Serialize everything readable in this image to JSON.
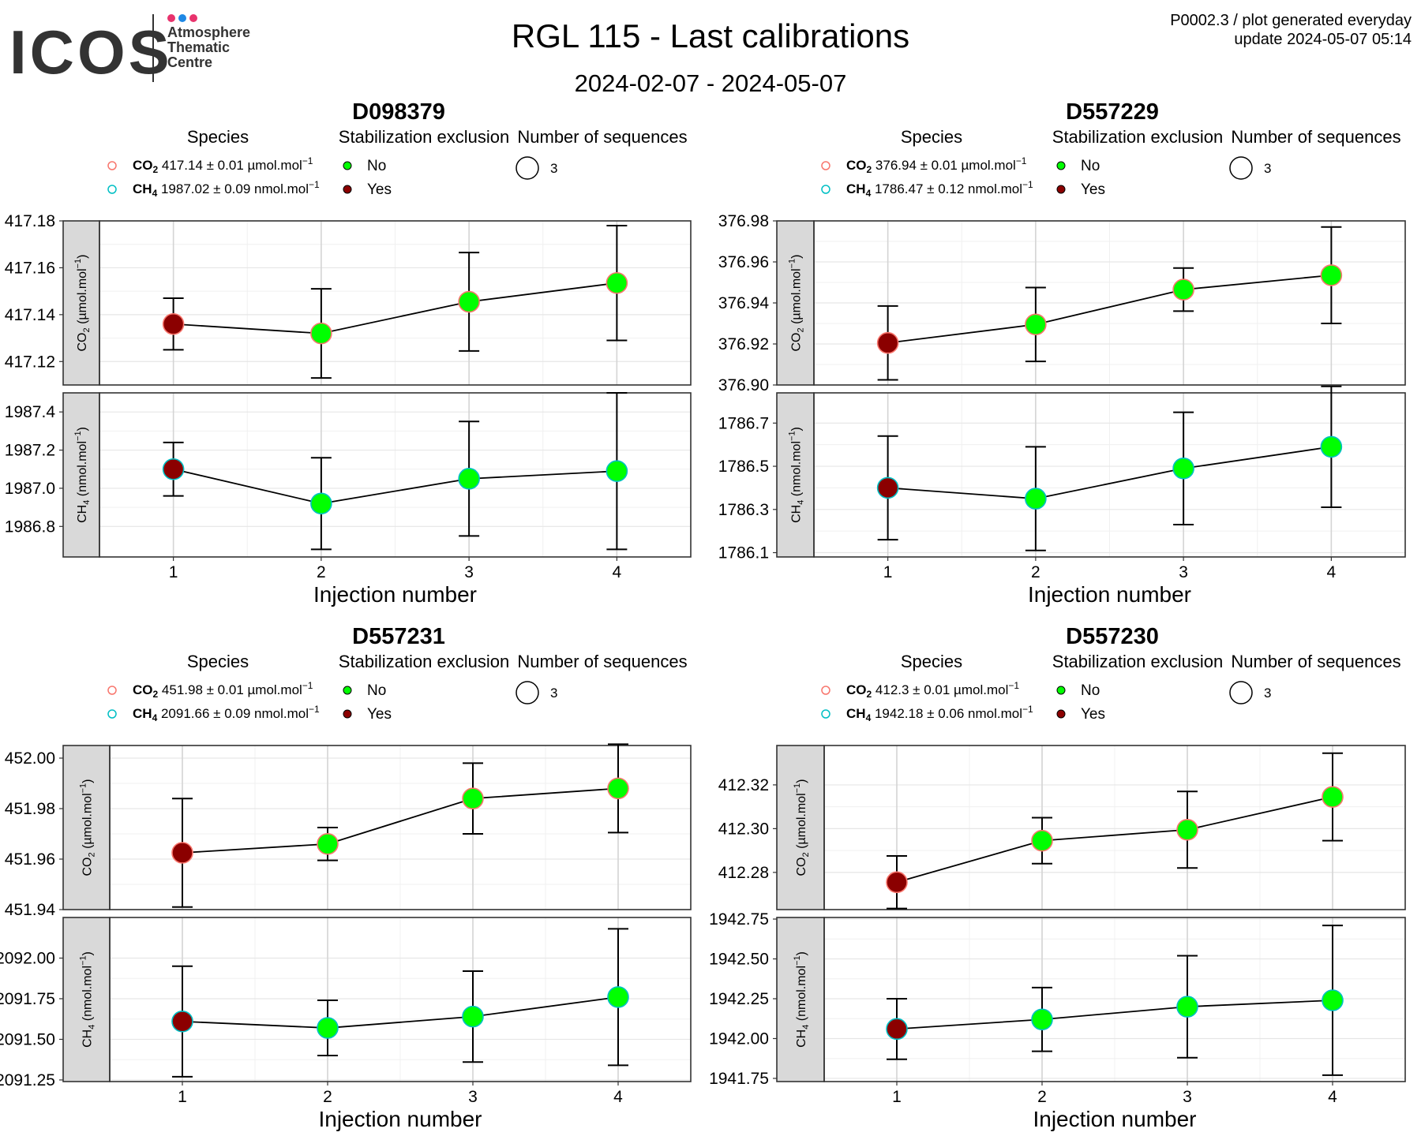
{
  "header": {
    "logo_word": "ICOS",
    "logo_lines": [
      "Atmosphere",
      "Thematic",
      "Centre"
    ],
    "title": "RGL 115 - Last calibrations",
    "date_range": "2024-02-07 - 2024-05-07",
    "info_line1": "P0002.3 / plot generated everyday",
    "info_line2": "update  2024-05-07 05:14"
  },
  "colors": {
    "logo_dots": [
      "#e8336d",
      "#1e88e5",
      "#e8336d"
    ],
    "no": "#00ff00",
    "yes": "#8b0000",
    "co2_outline": "#f8766d",
    "ch4_outline": "#00bfc4",
    "strip_fill": "#d9d9d9"
  },
  "legend_titles": {
    "species": "Species",
    "stabilization": "Stabilization exclusion",
    "sequences": "Number of sequences",
    "no": "No",
    "yes": "Yes",
    "sequences_value": "3"
  },
  "chart_data": [
    {
      "type": "line",
      "title": "D098379",
      "xlabel": "Injection number",
      "x": [
        1,
        2,
        3,
        4
      ],
      "xlim": [
        0.5,
        4.5
      ],
      "legend": {
        "co2": {
          "species": "CO",
          "sub": "2",
          "text": " 417.14 ± 0.01 µmol.mol",
          "sup": "−1"
        },
        "ch4": {
          "species": "CH",
          "sub": "4",
          "text": " 1987.02 ± 0.09 nmol.mol",
          "sup": "−1"
        }
      },
      "panels": [
        {
          "strip": "CO",
          "strip_sub": "2",
          "strip_rest": " (µmol.mol",
          "strip_sup": "−1",
          "strip_end": ")",
          "ylim": [
            417.11,
            417.18
          ],
          "ticks": [
            417.12,
            417.14,
            417.16,
            417.18
          ],
          "tick_labels": [
            "417.12",
            "417.14",
            "417.16",
            "417.18"
          ],
          "y": [
            417.136,
            417.132,
            417.1455,
            417.1535
          ],
          "err": [
            0.011,
            0.019,
            0.021,
            0.0245
          ],
          "excluded": [
            true,
            false,
            false,
            false
          ]
        },
        {
          "strip": "CH",
          "strip_sub": "4",
          "strip_rest": " (nmol.mol",
          "strip_sup": "−1",
          "strip_end": ")",
          "ylim": [
            1986.64,
            1987.5
          ],
          "ticks": [
            1986.8,
            1987.0,
            1987.2,
            1987.4
          ],
          "tick_labels": [
            "1986.8",
            "1987.0",
            "1987.2",
            "1987.4"
          ],
          "y": [
            1987.1,
            1986.92,
            1987.05,
            1987.09
          ],
          "err": [
            0.14,
            0.24,
            0.3,
            0.41
          ],
          "excluded": [
            true,
            false,
            false,
            false
          ]
        }
      ]
    },
    {
      "type": "line",
      "title": "D557229",
      "xlabel": "Injection number",
      "x": [
        1,
        2,
        3,
        4
      ],
      "xlim": [
        0.5,
        4.5
      ],
      "legend": {
        "co2": {
          "species": "CO",
          "sub": "2",
          "text": " 376.94 ± 0.01 µmol.mol",
          "sup": "−1"
        },
        "ch4": {
          "species": "CH",
          "sub": "4",
          "text": " 1786.47 ± 0.12 nmol.mol",
          "sup": "−1"
        }
      },
      "panels": [
        {
          "strip": "CO",
          "strip_sub": "2",
          "strip_rest": " (µmol.mol",
          "strip_sup": "−1",
          "strip_end": ")",
          "ylim": [
            376.9,
            376.98
          ],
          "ticks": [
            376.9,
            376.92,
            376.94,
            376.96,
            376.98
          ],
          "tick_labels": [
            "376.90",
            "376.92",
            "376.94",
            "376.96",
            "376.98"
          ],
          "y": [
            376.9205,
            376.9295,
            376.9465,
            376.9535
          ],
          "err": [
            0.018,
            0.018,
            0.0105,
            0.0235
          ],
          "excluded": [
            true,
            false,
            false,
            false
          ]
        },
        {
          "strip": "CH",
          "strip_sub": "4",
          "strip_rest": " (nmol.mol",
          "strip_sup": "−1",
          "strip_end": ")",
          "ylim": [
            1786.08,
            1786.84
          ],
          "ticks": [
            1786.1,
            1786.3,
            1786.5,
            1786.7
          ],
          "tick_labels": [
            "1786.1",
            "1786.3",
            "1786.5",
            "1786.7"
          ],
          "y": [
            1786.4,
            1786.35,
            1786.49,
            1786.59
          ],
          "err": [
            0.24,
            0.24,
            0.26,
            0.28
          ],
          "excluded": [
            true,
            false,
            false,
            false
          ]
        }
      ]
    },
    {
      "type": "line",
      "title": "D557231",
      "xlabel": "Injection number",
      "x": [
        1,
        2,
        3,
        4
      ],
      "xlim": [
        0.5,
        4.5
      ],
      "legend": {
        "co2": {
          "species": "CO",
          "sub": "2",
          "text": " 451.98 ± 0.01 µmol.mol",
          "sup": "−1"
        },
        "ch4": {
          "species": "CH",
          "sub": "4",
          "text": " 2091.66 ± 0.09 nmol.mol",
          "sup": "−1"
        }
      },
      "panels": [
        {
          "strip": "CO",
          "strip_sub": "2",
          "strip_rest": " (µmol.mol",
          "strip_sup": "−1",
          "strip_end": ")",
          "ylim": [
            451.94,
            452.005
          ],
          "ticks": [
            451.94,
            451.96,
            451.98,
            452.0
          ],
          "tick_labels": [
            "451.94",
            "451.96",
            "451.98",
            "452.00"
          ],
          "y": [
            451.9625,
            451.966,
            451.984,
            451.988
          ],
          "err": [
            0.0215,
            0.0065,
            0.014,
            0.0175
          ],
          "excluded": [
            true,
            false,
            false,
            false
          ]
        },
        {
          "strip": "CH",
          "strip_sub": "4",
          "strip_rest": " (nmol.mol",
          "strip_sup": "−1",
          "strip_end": ")",
          "ylim": [
            2091.24,
            2092.25
          ],
          "ticks": [
            2091.25,
            2091.5,
            2091.75,
            2092.0
          ],
          "tick_labels": [
            "2091.25",
            "2091.50",
            "2091.75",
            "2092.00"
          ],
          "y": [
            2091.61,
            2091.57,
            2091.64,
            2091.76
          ],
          "err": [
            0.34,
            0.17,
            0.28,
            0.42
          ],
          "excluded": [
            true,
            false,
            false,
            false
          ]
        }
      ]
    },
    {
      "type": "line",
      "title": "D557230",
      "xlabel": "Injection number",
      "x": [
        1,
        2,
        3,
        4
      ],
      "xlim": [
        0.5,
        4.5
      ],
      "legend": {
        "co2": {
          "species": "CO",
          "sub": "2",
          "text": " 412.3 ± 0.01 µmol.mol",
          "sup": "−1"
        },
        "ch4": {
          "species": "CH",
          "sub": "4",
          "text": " 1942.18 ± 0.06 nmol.mol",
          "sup": "−1"
        }
      },
      "panels": [
        {
          "strip": "CO",
          "strip_sub": "2",
          "strip_rest": " (µmol.mol",
          "strip_sup": "−1",
          "strip_end": ")",
          "ylim": [
            412.263,
            412.338
          ],
          "ticks": [
            412.28,
            412.3,
            412.32
          ],
          "tick_labels": [
            "412.28",
            "412.30",
            "412.32"
          ],
          "y": [
            412.2755,
            412.2945,
            412.2995,
            412.3145
          ],
          "err": [
            0.012,
            0.0105,
            0.0175,
            0.02
          ],
          "excluded": [
            true,
            false,
            false,
            false
          ]
        },
        {
          "strip": "CH",
          "strip_sub": "4",
          "strip_rest": " (nmol.mol",
          "strip_sup": "−1",
          "strip_end": ")",
          "ylim": [
            1941.73,
            1942.76
          ],
          "ticks": [
            1941.75,
            1942.0,
            1942.25,
            1942.5,
            1942.75
          ],
          "tick_labels": [
            "1941.75",
            "1942.00",
            "1942.25",
            "1942.50",
            "1942.75"
          ],
          "y": [
            1942.06,
            1942.12,
            1942.2,
            1942.24
          ],
          "err": [
            0.19,
            0.2,
            0.32,
            0.47
          ],
          "excluded": [
            true,
            false,
            false,
            false
          ]
        }
      ]
    }
  ]
}
